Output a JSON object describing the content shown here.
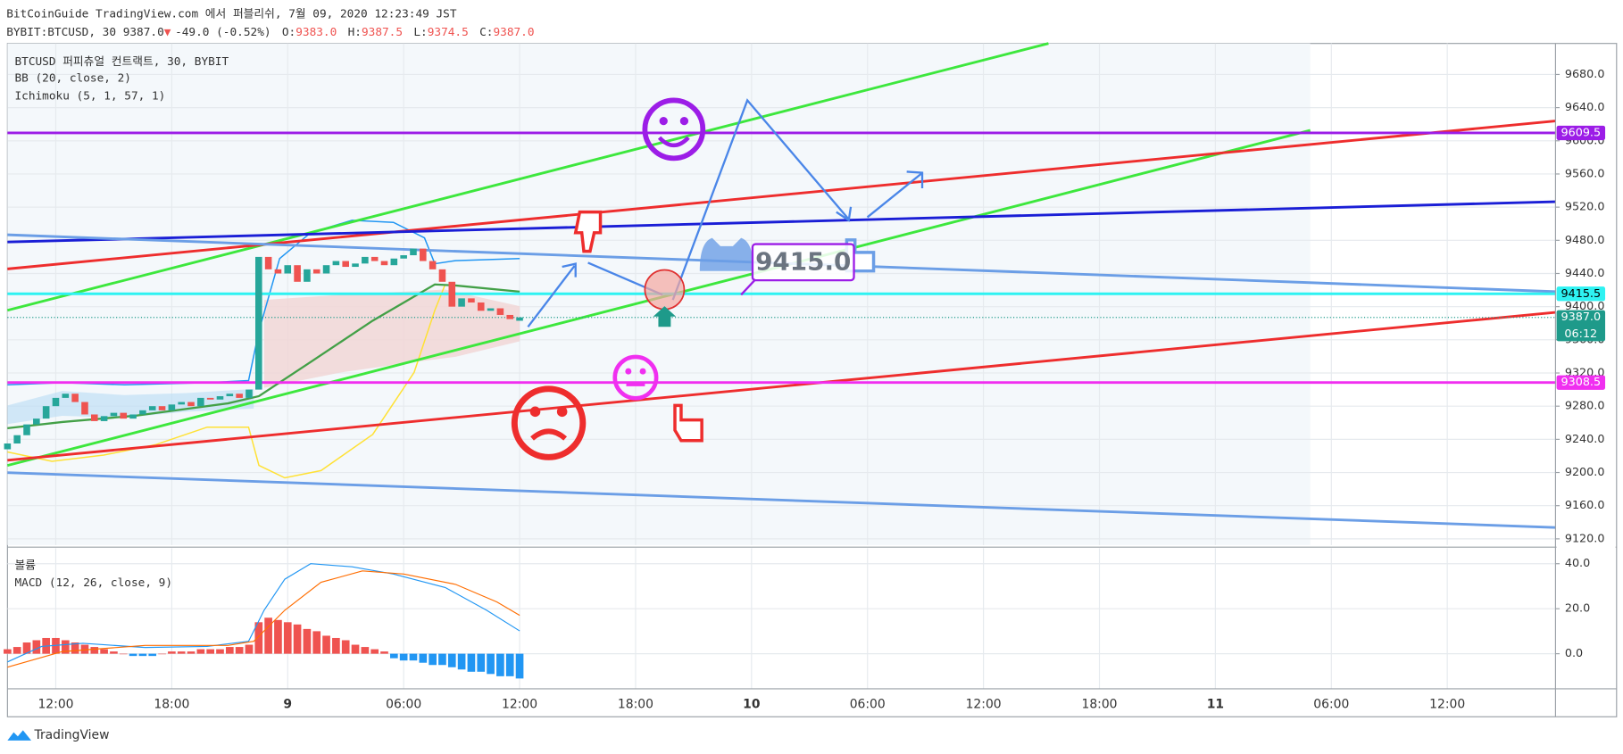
{
  "header": {
    "published": "BitCoinGuide TradingView.com 에서 퍼블리쉬, 7월 09, 2020 12:23:49 JST",
    "symbol": "BYBIT:BTCUSD, 30 9387.0",
    "arrow": "▼",
    "change": "-49.0 (-0.52%)",
    "o_label": "O:",
    "o": "9383.0",
    "h_label": "H:",
    "h": "9387.5",
    "l_label": "L:",
    "l": "9374.5",
    "c_label": "C:",
    "c": "9387.0"
  },
  "footer": {
    "brand": "TradingView"
  },
  "chart_data": {
    "type": "candlestick",
    "indicators": [
      "BTCUSD 퍼피츄얼 컨트랙트, 30, BYBIT",
      "BB (20, close, 2)",
      "Ichimoku (5, 1, 57, 1)"
    ],
    "x": [
      -14.5,
      -14,
      -13.5,
      -13,
      -12.5,
      -12,
      -11.5,
      -11,
      -10.5,
      -10,
      -9.5,
      -9,
      -8.5,
      -8,
      -7.5,
      -7,
      -6.5,
      -6,
      -5.5,
      -5,
      -4.5,
      -4,
      -3.5,
      -3,
      -2.5,
      -2,
      -1.5,
      -1,
      -0.5,
      0,
      0.5,
      1,
      1.5,
      2,
      2.5,
      3,
      3.5,
      4,
      4.5,
      5,
      5.5,
      6,
      6.5,
      7,
      7.5,
      8,
      8.5,
      9,
      9.5,
      10,
      10.5,
      11,
      11.5,
      12
    ],
    "open": [
      9228,
      9235,
      9245,
      9258,
      9265,
      9280,
      9290,
      9295,
      9285,
      9270,
      9262,
      9268,
      9272,
      9265,
      9270,
      9275,
      9280,
      9275,
      9282,
      9285,
      9280,
      9290,
      9288,
      9292,
      9295,
      9290,
      9300,
      9460,
      9445,
      9440,
      9450,
      9430,
      9445,
      9440,
      9450,
      9455,
      9448,
      9452,
      9460,
      9455,
      9450,
      9458,
      9462,
      9470,
      9455,
      9445,
      9430,
      9400,
      9410,
      9405,
      9395,
      9398,
      9390,
      9383
    ],
    "close": [
      9235,
      9245,
      9258,
      9265,
      9280,
      9290,
      9295,
      9285,
      9270,
      9262,
      9268,
      9272,
      9265,
      9270,
      9275,
      9280,
      9275,
      9282,
      9285,
      9280,
      9290,
      9288,
      9292,
      9295,
      9290,
      9300,
      9460,
      9445,
      9440,
      9450,
      9430,
      9445,
      9440,
      9450,
      9455,
      9448,
      9452,
      9460,
      9455,
      9450,
      9458,
      9462,
      9470,
      9455,
      9445,
      9430,
      9400,
      9410,
      9405,
      9395,
      9398,
      9390,
      9385,
      9387
    ],
    "up_color": "#26a69a",
    "down_color": "#ef5350",
    "xlim": [
      -14.5,
      65.6
    ],
    "xticks": [
      {
        "value": -12,
        "label": "12:00"
      },
      {
        "value": -6,
        "label": "18:00"
      },
      {
        "value": 0,
        "label": "9"
      },
      {
        "value": 6,
        "label": "06:00"
      },
      {
        "value": 12,
        "label": "12:00"
      },
      {
        "value": 18,
        "label": "18:00"
      },
      {
        "value": 24,
        "label": "10"
      },
      {
        "value": 30,
        "label": "06:00"
      },
      {
        "value": 36,
        "label": "12:00"
      },
      {
        "value": 42,
        "label": "18:00"
      },
      {
        "value": 48,
        "label": "11"
      },
      {
        "value": 54,
        "label": "06:00"
      },
      {
        "value": 60,
        "label": "12:00"
      }
    ],
    "ylim": [
      9112.5,
      9717.4
    ],
    "yticks": [
      {
        "value": 9120,
        "label": "9120.0"
      },
      {
        "value": 9160,
        "label": "9160.0"
      },
      {
        "value": 9200,
        "label": "9200.0"
      },
      {
        "value": 9240,
        "label": "9240.0"
      },
      {
        "value": 9280,
        "label": "9280.0"
      },
      {
        "value": 9320,
        "label": "9320.0"
      },
      {
        "value": 9360,
        "label": "9360.0"
      },
      {
        "value": 9400,
        "label": "9400.0"
      },
      {
        "value": 9440,
        "label": "9440.0"
      },
      {
        "value": 9480,
        "label": "9480.0"
      },
      {
        "value": 9520,
        "label": "9520.0"
      },
      {
        "value": 9560,
        "label": "9560.0"
      },
      {
        "value": 9600,
        "label": "9600.0"
      },
      {
        "value": 9640,
        "label": "9640.0"
      },
      {
        "value": 9680,
        "label": "9680.0"
      }
    ],
    "grid": true,
    "levels": [
      {
        "price": 9609.5,
        "label": "9609.5",
        "color": "#9c1de7",
        "style": "solid"
      },
      {
        "price": 9415.5,
        "label": "9415.5",
        "color": "#2ef2f2",
        "style": "solid"
      },
      {
        "price": 9387.0,
        "label": "9387.0",
        "countdown": "06:12",
        "color": "#1e9a8a",
        "style": "dotted"
      },
      {
        "price": 9308.5,
        "label": "9308.5",
        "color": "#f02ff0",
        "style": "solid"
      }
    ],
    "annotation": "9415.0",
    "volume_label": "볼륨",
    "macd": {
      "name": "MACD (12, 26, close, 9)",
      "values": [
        2,
        3,
        5,
        6,
        7,
        7,
        6,
        5,
        4,
        3,
        2,
        1,
        0,
        -1,
        -1,
        -1,
        0,
        1,
        1,
        1,
        2,
        2,
        2,
        3,
        3,
        4,
        14,
        16,
        15,
        14,
        13,
        11,
        10,
        8,
        7,
        6,
        4,
        3,
        2,
        1,
        -2,
        -3,
        -3,
        -4,
        -5,
        -5,
        -6,
        -7,
        -8,
        -8,
        -9,
        -10,
        -10,
        -11
      ],
      "up_color": "#ef5350",
      "down_color": "#2196f3",
      "ylim": [
        -15.6,
        46.9
      ],
      "yticks": [
        {
          "value": 0,
          "label": "0.0"
        },
        {
          "value": 20,
          "label": "20.0"
        },
        {
          "value": 40,
          "label": "40.0"
        }
      ]
    }
  }
}
